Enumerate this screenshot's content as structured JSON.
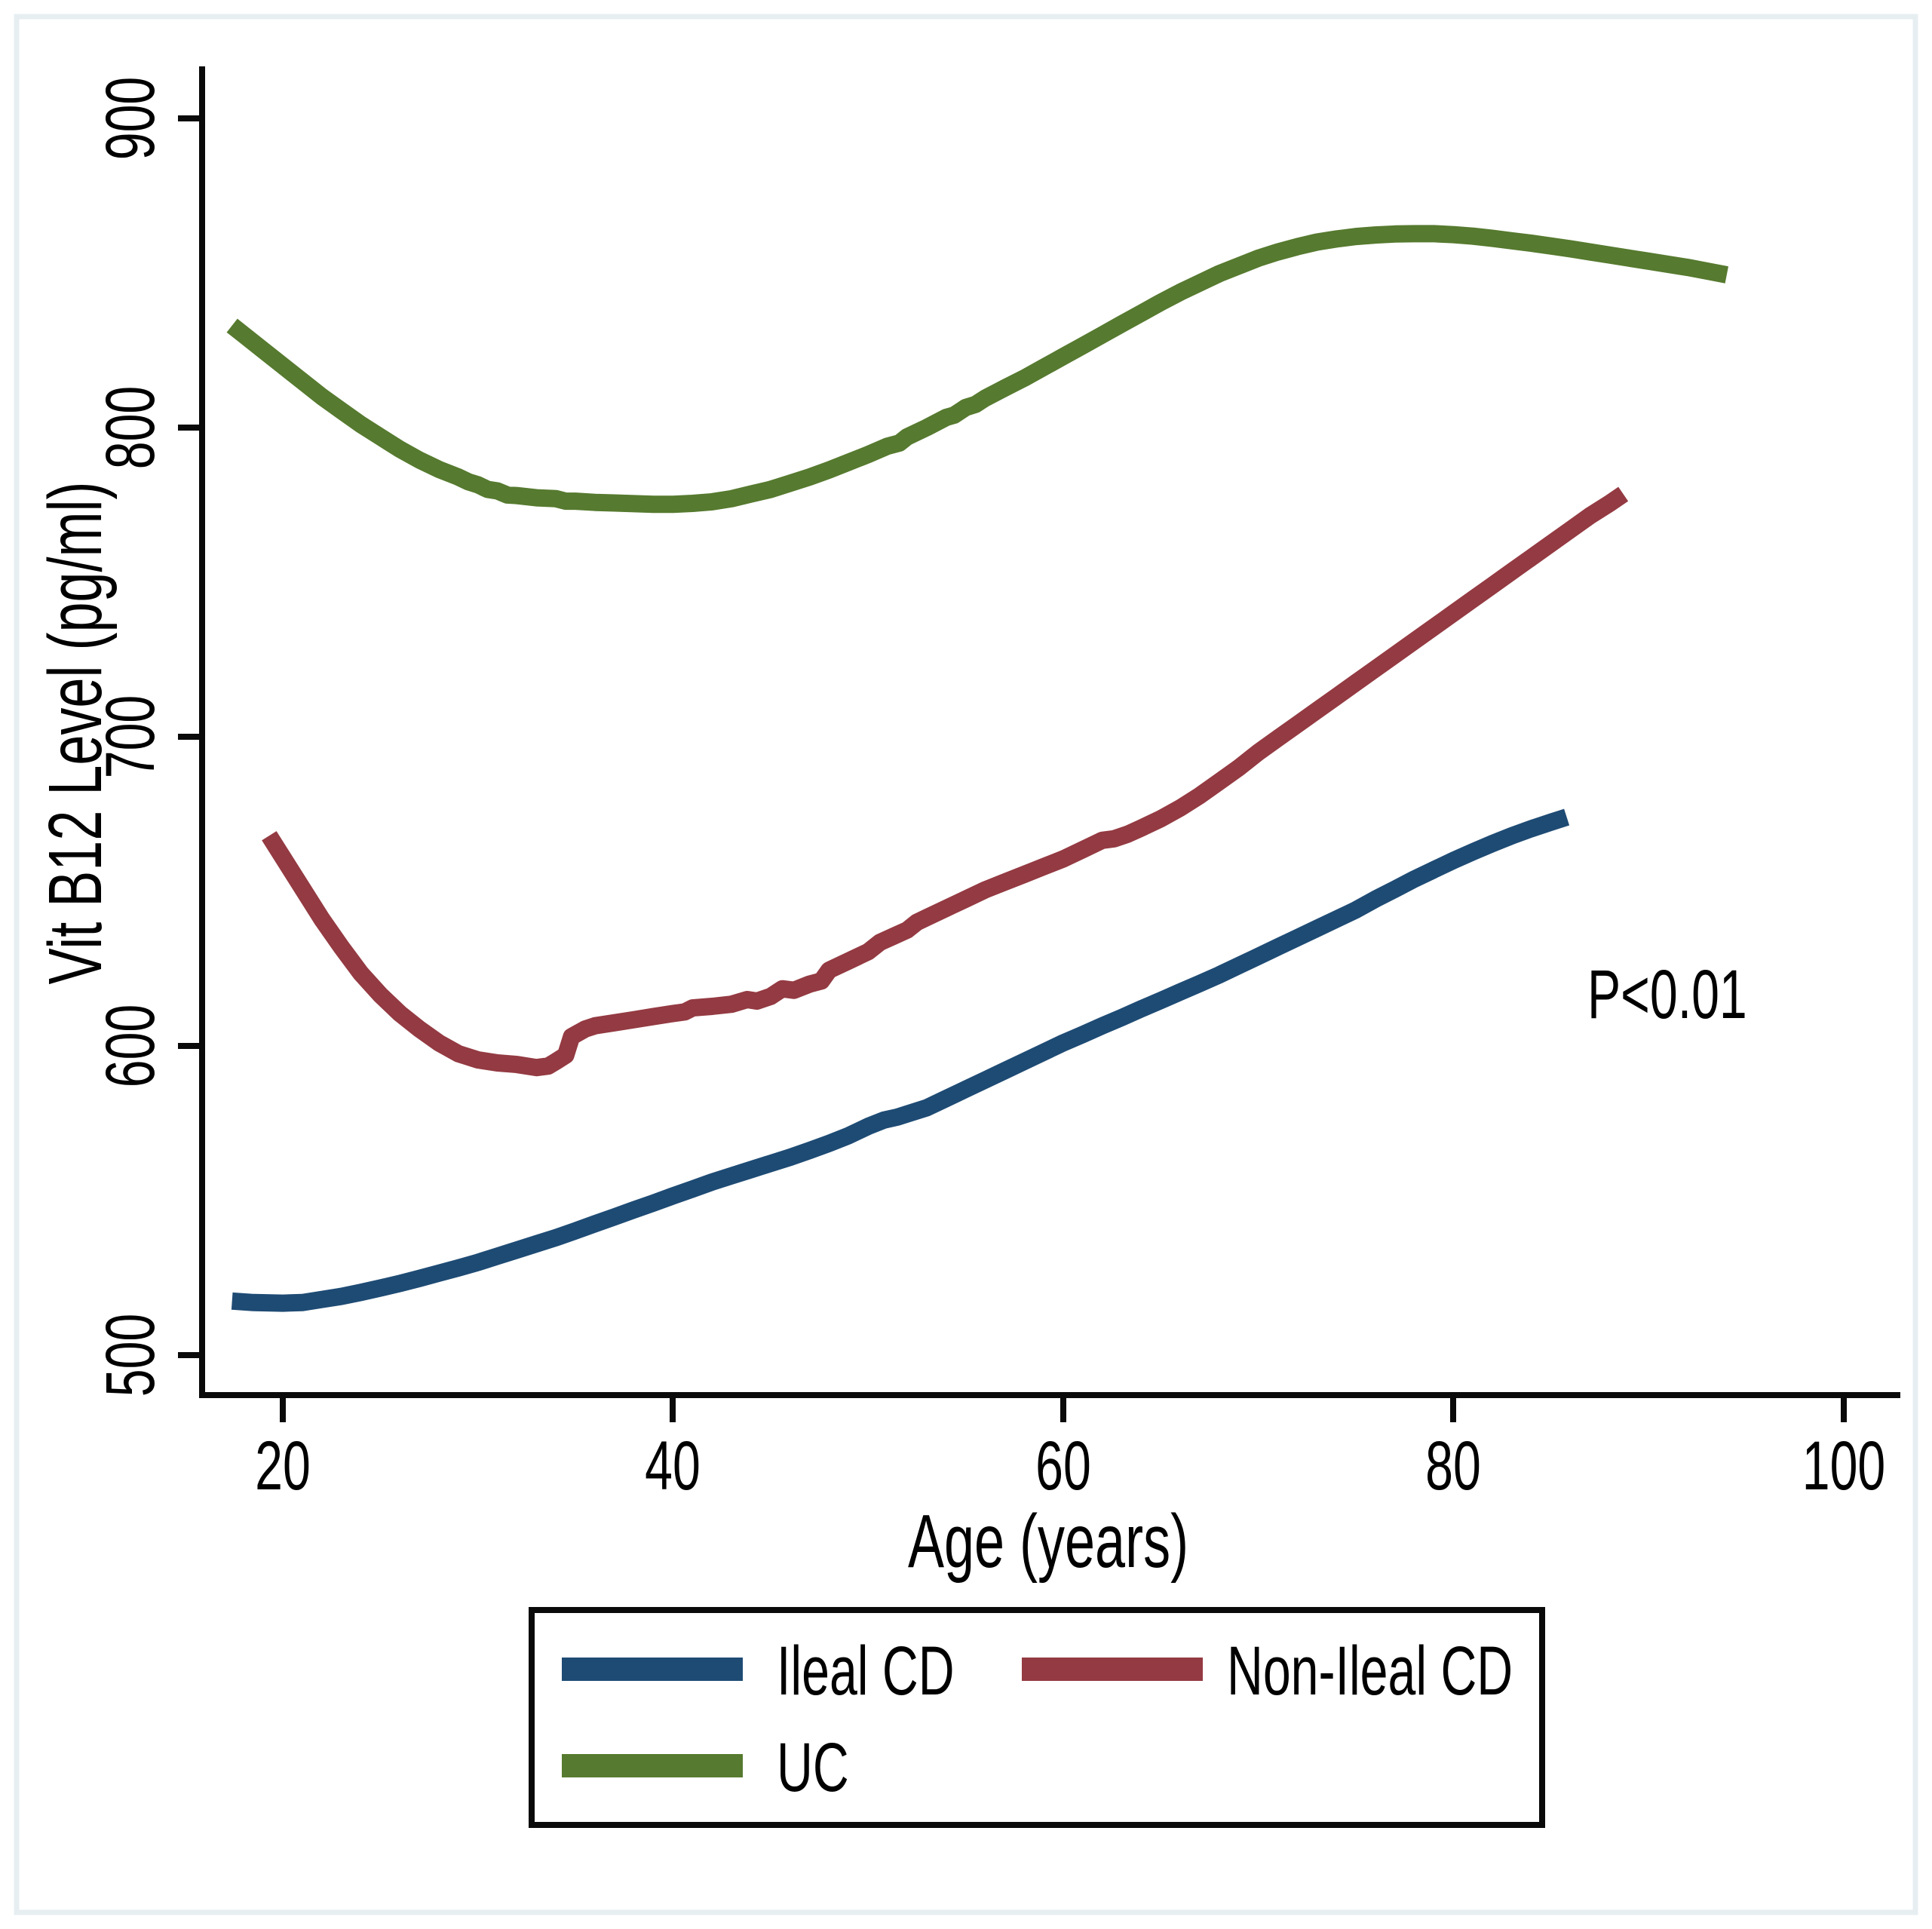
{
  "figure": {
    "p_value_annotation": "P<0.01",
    "background_color": "#ffffff",
    "frame_color": "#e7eef2",
    "axis_color": "#0a0a0a"
  },
  "chart_data": {
    "type": "line",
    "title": "",
    "xlabel": "Age (years)",
    "ylabel": "Vit B12 Level (pg/ml)",
    "xlim": [
      16,
      102
    ],
    "ylim": [
      488,
      915
    ],
    "x_ticks": [
      20,
      40,
      60,
      80,
      100
    ],
    "y_ticks": [
      900,
      800,
      700,
      600,
      500
    ],
    "grid": false,
    "legend_position": "bottom",
    "annotation": {
      "text": "P<0.01",
      "x_age": 87,
      "y_value": 612
    },
    "series": [
      {
        "name": "Ileal CD",
        "color": "#1e4b74",
        "points": [
          [
            17.4,
            517.5
          ],
          [
            18.5,
            517
          ],
          [
            20,
            516.8
          ],
          [
            21,
            517
          ],
          [
            22,
            518
          ],
          [
            23,
            519
          ],
          [
            24,
            520.3
          ],
          [
            25,
            521.7
          ],
          [
            26,
            523.2
          ],
          [
            27,
            524.8
          ],
          [
            28,
            526.5
          ],
          [
            29,
            528.2
          ],
          [
            30,
            530
          ],
          [
            31,
            532
          ],
          [
            32,
            534
          ],
          [
            33,
            536
          ],
          [
            34,
            538
          ],
          [
            35,
            540.2
          ],
          [
            36,
            542.5
          ],
          [
            37,
            544.7
          ],
          [
            38,
            547
          ],
          [
            39,
            549.2
          ],
          [
            40,
            551.5
          ],
          [
            41,
            553.7
          ],
          [
            42,
            556
          ],
          [
            43,
            558
          ],
          [
            44,
            560
          ],
          [
            45,
            562
          ],
          [
            46,
            564
          ],
          [
            47,
            566.2
          ],
          [
            48,
            568.5
          ],
          [
            49,
            571
          ],
          [
            50,
            574
          ],
          [
            50.8,
            576
          ],
          [
            51.5,
            577
          ],
          [
            52,
            578
          ],
          [
            53,
            580
          ],
          [
            54,
            583
          ],
          [
            55,
            586
          ],
          [
            56,
            589
          ],
          [
            57,
            592
          ],
          [
            58,
            595
          ],
          [
            59,
            598
          ],
          [
            60,
            601
          ],
          [
            61,
            603.7
          ],
          [
            62,
            606.5
          ],
          [
            63,
            609.2
          ],
          [
            64,
            612
          ],
          [
            65,
            614.7
          ],
          [
            66,
            617.5
          ],
          [
            67,
            620.2
          ],
          [
            68,
            623
          ],
          [
            69,
            626
          ],
          [
            70,
            629
          ],
          [
            71,
            632
          ],
          [
            72,
            635
          ],
          [
            73,
            638
          ],
          [
            74,
            641
          ],
          [
            75,
            644
          ],
          [
            76,
            647.5
          ],
          [
            77,
            650.7
          ],
          [
            78,
            654
          ],
          [
            79,
            657
          ],
          [
            80,
            660
          ],
          [
            81,
            662.8
          ],
          [
            82,
            665.5
          ],
          [
            83,
            668
          ],
          [
            84,
            670.3
          ],
          [
            85,
            672.4
          ],
          [
            85.8,
            674
          ]
        ]
      },
      {
        "name": "Non-Ileal CD",
        "color": "#943a42",
        "points": [
          [
            19.3,
            668
          ],
          [
            20,
            661
          ],
          [
            21,
            651
          ],
          [
            22,
            641
          ],
          [
            23,
            632
          ],
          [
            24,
            623.5
          ],
          [
            25,
            616.5
          ],
          [
            26,
            610.5
          ],
          [
            27,
            605.5
          ],
          [
            28,
            601
          ],
          [
            29,
            597.5
          ],
          [
            30,
            595.5
          ],
          [
            31,
            594.5
          ],
          [
            32,
            594
          ],
          [
            33,
            593
          ],
          [
            33.6,
            593.5
          ],
          [
            34,
            595
          ],
          [
            34.5,
            597
          ],
          [
            34.8,
            603
          ],
          [
            35.5,
            605.5
          ],
          [
            36,
            606.5
          ],
          [
            37,
            607.5
          ],
          [
            38,
            608.5
          ],
          [
            39,
            609.5
          ],
          [
            40,
            610.5
          ],
          [
            40.6,
            611
          ],
          [
            41,
            612.3
          ],
          [
            42,
            612.8
          ],
          [
            43,
            613.5
          ],
          [
            43.8,
            615
          ],
          [
            44.3,
            614.5
          ],
          [
            45,
            616
          ],
          [
            45.6,
            618.5
          ],
          [
            46.2,
            618
          ],
          [
            47,
            620
          ],
          [
            47.6,
            621
          ],
          [
            48,
            624.5
          ],
          [
            49,
            627.5
          ],
          [
            50,
            630.5
          ],
          [
            50.6,
            633.5
          ],
          [
            51.3,
            635.5
          ],
          [
            52,
            637.5
          ],
          [
            52.5,
            640
          ],
          [
            53,
            641.5
          ],
          [
            54,
            644.5
          ],
          [
            55,
            647.5
          ],
          [
            56,
            650.5
          ],
          [
            57,
            653
          ],
          [
            58,
            655.5
          ],
          [
            59,
            658
          ],
          [
            60,
            660.5
          ],
          [
            61,
            663.5
          ],
          [
            62,
            666.5
          ],
          [
            62.6,
            667
          ],
          [
            63.3,
            668.5
          ],
          [
            64,
            670.5
          ],
          [
            65,
            673.5
          ],
          [
            66,
            677
          ],
          [
            67,
            681
          ],
          [
            68,
            685.5
          ],
          [
            69,
            690
          ],
          [
            70,
            695
          ],
          [
            71,
            699.5
          ],
          [
            72,
            704
          ],
          [
            73,
            708.5
          ],
          [
            74,
            713
          ],
          [
            75,
            717.5
          ],
          [
            76,
            722
          ],
          [
            77,
            726.5
          ],
          [
            78,
            731
          ],
          [
            79,
            735.5
          ],
          [
            80,
            740
          ],
          [
            81,
            744.5
          ],
          [
            82,
            749
          ],
          [
            83,
            753.5
          ],
          [
            84,
            758
          ],
          [
            85,
            762.5
          ],
          [
            86,
            767
          ],
          [
            87,
            771.5
          ],
          [
            88,
            775.5
          ],
          [
            88.7,
            778.5
          ]
        ]
      },
      {
        "name": "UC",
        "color": "#567a2f",
        "points": [
          [
            17.4,
            833
          ],
          [
            18,
            830
          ],
          [
            19,
            825
          ],
          [
            20,
            820
          ],
          [
            21,
            815
          ],
          [
            22,
            810
          ],
          [
            23,
            805.5
          ],
          [
            24,
            801
          ],
          [
            25,
            797
          ],
          [
            26,
            793
          ],
          [
            27,
            789.5
          ],
          [
            28,
            786.5
          ],
          [
            29,
            784
          ],
          [
            29.5,
            782.5
          ],
          [
            30,
            781.5
          ],
          [
            30.5,
            780
          ],
          [
            31,
            779.5
          ],
          [
            31.5,
            778.2
          ],
          [
            32,
            778
          ],
          [
            33,
            777.3
          ],
          [
            34,
            777
          ],
          [
            34.5,
            776.2
          ],
          [
            35,
            776.2
          ],
          [
            36,
            775.8
          ],
          [
            37,
            775.6
          ],
          [
            38,
            775.4
          ],
          [
            39,
            775.2
          ],
          [
            40,
            775.2
          ],
          [
            41,
            775.5
          ],
          [
            42,
            776
          ],
          [
            43,
            777
          ],
          [
            44,
            778.5
          ],
          [
            45,
            780
          ],
          [
            46,
            782
          ],
          [
            47,
            784
          ],
          [
            48,
            786.3
          ],
          [
            49,
            788.8
          ],
          [
            50,
            791.3
          ],
          [
            51,
            794
          ],
          [
            51.6,
            795
          ],
          [
            52,
            797
          ],
          [
            53,
            800
          ],
          [
            54,
            803.3
          ],
          [
            54.4,
            804
          ],
          [
            55,
            806.5
          ],
          [
            55.5,
            807.5
          ],
          [
            56,
            809.5
          ],
          [
            57,
            812.8
          ],
          [
            58,
            816
          ],
          [
            59,
            819.5
          ],
          [
            60,
            823
          ],
          [
            61,
            826.5
          ],
          [
            62,
            830
          ],
          [
            63,
            833.5
          ],
          [
            64,
            837
          ],
          [
            65,
            840.5
          ],
          [
            66,
            843.8
          ],
          [
            67,
            846.8
          ],
          [
            68,
            849.8
          ],
          [
            69,
            852.3
          ],
          [
            70,
            854.8
          ],
          [
            71,
            856.8
          ],
          [
            72,
            858.5
          ],
          [
            73,
            860
          ],
          [
            74,
            861
          ],
          [
            75,
            861.8
          ],
          [
            76,
            862.3
          ],
          [
            77,
            862.6
          ],
          [
            78,
            862.7
          ],
          [
            79,
            862.7
          ],
          [
            80,
            862.4
          ],
          [
            81,
            861.9
          ],
          [
            82,
            861.2
          ],
          [
            83,
            860.4
          ],
          [
            84,
            859.6
          ],
          [
            85,
            858.7
          ],
          [
            86,
            857.8
          ],
          [
            87,
            856.8
          ],
          [
            88,
            855.8
          ],
          [
            89,
            854.8
          ],
          [
            90,
            853.8
          ],
          [
            91,
            852.8
          ],
          [
            92,
            851.8
          ],
          [
            93,
            850.6
          ],
          [
            94,
            849.4
          ]
        ]
      }
    ]
  },
  "legend": {
    "items": [
      {
        "label": "Ileal CD",
        "color": "#1e4b74"
      },
      {
        "label": "Non-Ileal CD",
        "color": "#943a42"
      },
      {
        "label": "UC",
        "color": "#567a2f"
      }
    ]
  }
}
